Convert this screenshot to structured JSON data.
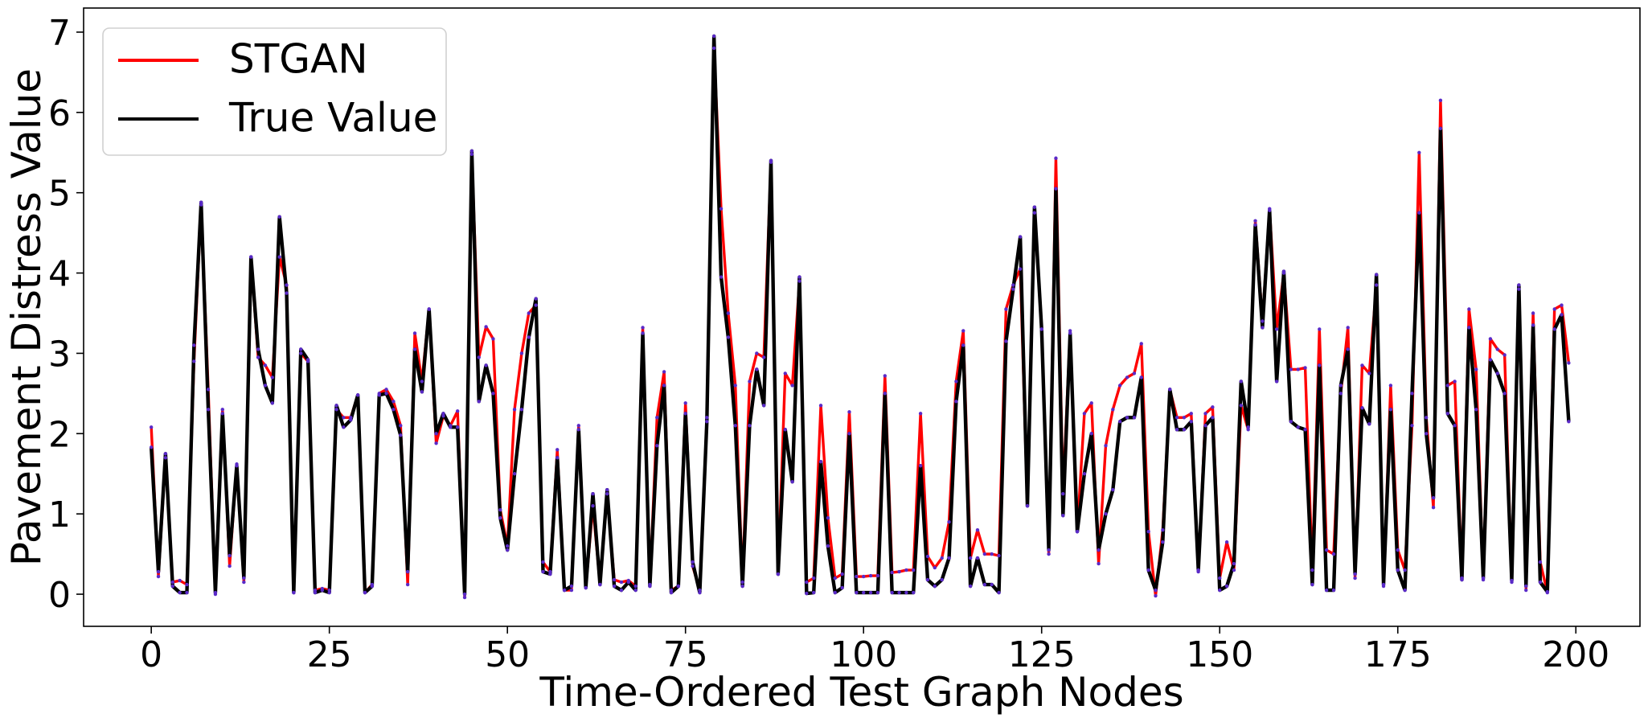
{
  "chart_data": {
    "type": "line",
    "title": "",
    "xlabel": "Time-Ordered Test Graph Nodes",
    "ylabel": "Pavement Distress Value",
    "xlim": [
      -9.5,
      209.0
    ],
    "ylim": [
      -0.4,
      7.3
    ],
    "xticks": [
      0,
      25,
      50,
      75,
      100,
      125,
      150,
      175,
      200
    ],
    "yticks": [
      0,
      1,
      2,
      3,
      4,
      5,
      6,
      7
    ],
    "grid": false,
    "legend": {
      "placement": "top-left"
    },
    "series": [
      {
        "name": "STGAN",
        "color": "#ff0000",
        "values": [
          2.08,
          0.22,
          1.7,
          0.15,
          0.17,
          0.12,
          2.9,
          4.85,
          2.55,
          0.0,
          2.3,
          0.35,
          1.62,
          0.15,
          4.2,
          2.95,
          2.85,
          2.7,
          4.2,
          3.85,
          0.02,
          3.0,
          2.9,
          0.05,
          0.07,
          0.05,
          2.3,
          2.2,
          2.2,
          2.48,
          0.02,
          0.12,
          2.5,
          2.55,
          2.4,
          2.1,
          0.12,
          3.25,
          2.65,
          3.55,
          1.88,
          2.22,
          2.1,
          2.28,
          -0.04,
          5.48,
          2.95,
          3.33,
          3.18,
          1.05,
          0.6,
          2.3,
          3.0,
          3.5,
          3.6,
          0.4,
          0.28,
          1.8,
          0.05,
          0.05,
          2.1,
          0.08,
          1.1,
          0.12,
          1.25,
          0.18,
          0.15,
          0.17,
          0.1,
          3.32,
          0.12,
          2.2,
          2.77,
          0.05,
          0.1,
          2.38,
          0.35,
          0.05,
          2.2,
          6.8,
          4.8,
          3.5,
          2.6,
          0.15,
          2.65,
          3.0,
          2.95,
          5.38,
          0.25,
          2.75,
          2.6,
          3.9,
          0.15,
          0.2,
          2.35,
          0.95,
          0.2,
          0.25,
          2.27,
          0.22,
          0.22,
          0.23,
          0.23,
          2.72,
          0.27,
          0.28,
          0.3,
          0.3,
          2.25,
          0.47,
          0.33,
          0.45,
          0.9,
          2.65,
          3.28,
          0.45,
          0.8,
          0.5,
          0.5,
          0.48,
          3.55,
          3.85,
          4.05,
          1.1,
          4.75,
          3.3,
          0.5,
          5.43,
          1.25,
          3.28,
          0.78,
          2.25,
          2.38,
          0.38,
          1.85,
          2.3,
          2.6,
          2.7,
          2.75,
          3.12,
          0.78,
          -0.02,
          0.8,
          2.55,
          2.2,
          2.2,
          2.25,
          0.28,
          2.25,
          2.33,
          0.2,
          0.65,
          0.3,
          2.35,
          2.05,
          4.65,
          3.4,
          4.8,
          3.3,
          4.0,
          2.8,
          2.8,
          2.82,
          0.3,
          3.3,
          0.55,
          0.5,
          2.5,
          3.32,
          0.2,
          2.85,
          2.75,
          3.85,
          0.1,
          2.6,
          0.55,
          0.3,
          2.1,
          5.5,
          2.2,
          1.08,
          6.15,
          2.6,
          2.65,
          0.2,
          3.55,
          2.8,
          0.18,
          3.18,
          3.05,
          2.98,
          0.15,
          3.8,
          0.05,
          3.5,
          0.4,
          0.02,
          3.55,
          3.6,
          2.88
        ]
      },
      {
        "name": "True Value",
        "color": "#000000",
        "values": [
          1.83,
          0.28,
          1.75,
          0.1,
          0.02,
          0.02,
          3.1,
          4.88,
          2.3,
          0.02,
          2.25,
          0.48,
          1.6,
          0.2,
          4.2,
          3.05,
          2.6,
          2.38,
          4.7,
          3.75,
          0.02,
          3.05,
          2.92,
          0.02,
          0.05,
          0.02,
          2.35,
          2.08,
          2.17,
          2.48,
          0.02,
          0.1,
          2.48,
          2.5,
          2.3,
          1.98,
          0.28,
          3.05,
          2.52,
          3.55,
          2.0,
          2.25,
          2.08,
          2.08,
          0.0,
          5.52,
          2.4,
          2.85,
          2.5,
          0.95,
          0.55,
          1.5,
          2.3,
          3.2,
          3.68,
          0.28,
          0.25,
          1.7,
          0.05,
          0.1,
          2.05,
          0.08,
          1.25,
          0.12,
          1.3,
          0.1,
          0.05,
          0.15,
          0.05,
          3.25,
          0.1,
          1.85,
          2.6,
          0.02,
          0.1,
          2.25,
          0.4,
          0.02,
          2.15,
          6.95,
          3.95,
          3.2,
          2.1,
          0.1,
          2.1,
          2.8,
          2.35,
          5.4,
          0.25,
          2.05,
          1.4,
          3.95,
          0.01,
          0.02,
          1.65,
          0.6,
          0.02,
          0.08,
          2.0,
          0.02,
          0.02,
          0.02,
          0.02,
          2.5,
          0.02,
          0.02,
          0.02,
          0.02,
          1.6,
          0.18,
          0.1,
          0.18,
          0.45,
          2.4,
          3.1,
          0.1,
          0.45,
          0.12,
          0.12,
          0.02,
          3.15,
          3.8,
          4.45,
          1.1,
          4.82,
          3.3,
          0.55,
          5.05,
          0.98,
          3.25,
          0.78,
          1.5,
          2.0,
          0.55,
          1.0,
          1.3,
          2.15,
          2.2,
          2.2,
          2.7,
          0.3,
          0.05,
          0.65,
          2.55,
          2.05,
          2.05,
          2.15,
          0.3,
          2.1,
          2.2,
          0.05,
          0.1,
          0.38,
          2.65,
          2.08,
          4.6,
          3.32,
          4.78,
          2.65,
          4.02,
          2.15,
          2.08,
          2.05,
          0.12,
          2.85,
          0.05,
          0.05,
          2.6,
          3.05,
          0.25,
          2.32,
          2.12,
          3.98,
          0.12,
          2.3,
          0.3,
          0.05,
          2.5,
          4.75,
          2.0,
          1.2,
          5.8,
          2.25,
          2.1,
          0.18,
          3.32,
          2.3,
          0.2,
          2.92,
          2.75,
          2.5,
          0.17,
          3.85,
          0.1,
          3.35,
          0.15,
          0.03,
          3.3,
          3.48,
          2.15
        ]
      }
    ]
  }
}
